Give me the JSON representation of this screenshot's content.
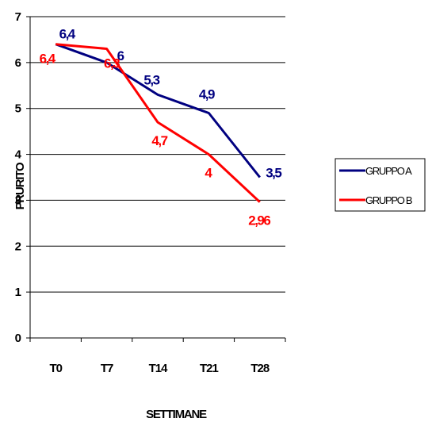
{
  "chart_data": {
    "type": "line",
    "categories": [
      "T0",
      "T7",
      "T14",
      "T21",
      "T28"
    ],
    "series": [
      {
        "name": "GRUPPO A",
        "values": [
          6.4,
          6.0,
          5.3,
          4.9,
          3.5
        ],
        "labels": [
          "6,4",
          "6",
          "5,3",
          "4,9",
          "3,5"
        ],
        "color": "#000080"
      },
      {
        "name": "GRUPPO B",
        "values": [
          6.4,
          6.3,
          4.7,
          4.0,
          2.96
        ],
        "labels": [
          "6,4",
          "6,3",
          "4,7",
          "4",
          "2,96"
        ],
        "color": "#ff0000"
      }
    ],
    "title": "",
    "xlabel": "SETTIMANE",
    "ylabel": "PRURITO",
    "ylim": [
      0,
      7
    ],
    "yticks": [
      "0",
      "1",
      "2",
      "3",
      "4",
      "5",
      "6",
      "7"
    ],
    "grid": true,
    "legend_position": "right"
  }
}
